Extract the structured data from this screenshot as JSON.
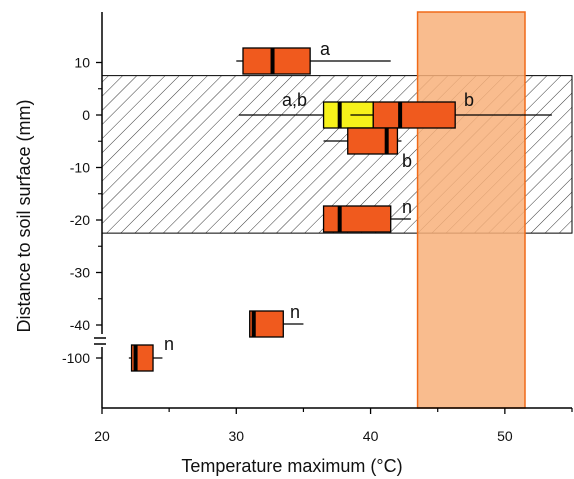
{
  "chart_data": {
    "type": "box",
    "xlabel": "Temperature maximum (°C)",
    "ylabel": "Distance to soil surface (mm)",
    "xlim": [
      20,
      55
    ],
    "x_ticks": [
      20,
      30,
      40,
      50
    ],
    "y_ticks": [
      {
        "value": 10,
        "label": "10"
      },
      {
        "value": 0,
        "label": "0"
      },
      {
        "value": -10,
        "label": "-10"
      },
      {
        "value": -20,
        "label": "-20"
      },
      {
        "value": -30,
        "label": "-30"
      },
      {
        "value": -40,
        "label": "-40"
      },
      {
        "value": -100,
        "label": "-100"
      }
    ],
    "y_axis_break": "between -40 and -100",
    "hatched_band": {
      "y_from": -22.5,
      "y_to": 7.5
    },
    "shaded_band": {
      "x_from": 43.5,
      "x_to": 51.5,
      "color": "#f8b07a"
    },
    "boxes": [
      {
        "depth": 10,
        "whisker_low": 30,
        "q1": 30.5,
        "median": 32.7,
        "q3": 35.5,
        "whisker_high": 41.5,
        "color": "#f05a1e",
        "label": "a"
      },
      {
        "depth": 0,
        "whisker_low": 30.2,
        "q1": 36.5,
        "median": 37.7,
        "q3": 40.2,
        "whisker_high": 43.5,
        "color": "#f7f21a",
        "label": "a,b"
      },
      {
        "depth": 0,
        "whisker_low": 38.5,
        "q1": 40.2,
        "median": 42.2,
        "q3": 46.3,
        "whisker_high": 53.5,
        "color": "#f05a1e",
        "label": "b"
      },
      {
        "depth": -5,
        "whisker_low": 36.5,
        "q1": 38.3,
        "median": 41.2,
        "q3": 42,
        "whisker_high": 42.3,
        "color": "#f05a1e",
        "label": "b"
      },
      {
        "depth": -20,
        "whisker_low": 36.5,
        "q1": 36.5,
        "median": 37.7,
        "q3": 41.5,
        "whisker_high": 43,
        "color": "#f05a1e",
        "label": "n"
      },
      {
        "depth": -40,
        "whisker_low": 31,
        "q1": 31,
        "median": 31.3,
        "q3": 33.5,
        "whisker_high": 35,
        "color": "#f05a1e",
        "label": "n"
      },
      {
        "depth": -100,
        "whisker_low": 22,
        "q1": 22.2,
        "median": 22.5,
        "q3": 23.8,
        "whisker_high": 24.5,
        "color": "#f05a1e",
        "label": "n"
      }
    ]
  }
}
